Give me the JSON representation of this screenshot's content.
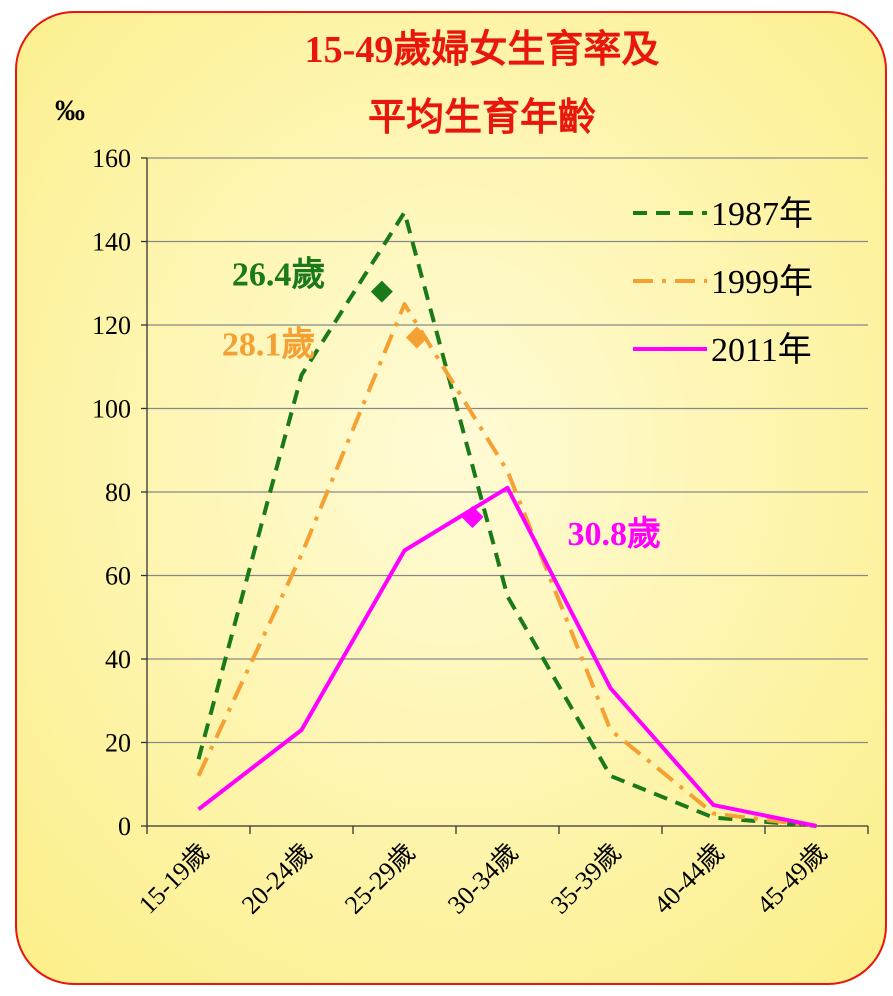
{
  "chart_data": {
    "type": "line",
    "title_line1": "15-49歲婦女生育率及",
    "title_line2": "平均生育年齡",
    "unit_label": "‰",
    "categories": [
      "15-19歲",
      "20-24歲",
      "25-29歲",
      "30-34歲",
      "35-39歲",
      "40-44歲",
      "45-49歲"
    ],
    "ylim": [
      0,
      160
    ],
    "yticks": [
      "0",
      "20",
      "40",
      "60",
      "80",
      "100",
      "120",
      "140",
      "160"
    ],
    "grid": true,
    "legend_position": "top-right",
    "series": [
      {
        "name": "1987年",
        "values": [
          16,
          108,
          147,
          55,
          12,
          2,
          0
        ],
        "color": "#1a7a1a",
        "style": "dash"
      },
      {
        "name": "1999年",
        "values": [
          12,
          65,
          125,
          85,
          23,
          3,
          0
        ],
        "color": "#f5a033",
        "style": "dashdot"
      },
      {
        "name": "2011年",
        "values": [
          4,
          23,
          66,
          81,
          33,
          5,
          0
        ],
        "color": "#ff00ff",
        "style": "solid"
      }
    ],
    "annotations": [
      {
        "label": "26.4歲",
        "age": 26.4,
        "value": 128,
        "color": "#1a7a1a"
      },
      {
        "label": "28.1歲",
        "age": 28.1,
        "value": 117,
        "color": "#f5a033"
      },
      {
        "label": "30.8歲",
        "age": 30.8,
        "value": 74,
        "color": "#ff00ff"
      }
    ]
  },
  "colors": {
    "title": "#e8160c",
    "frame_border": "#e8160c",
    "frame_fill_inner": "#fffbd6",
    "frame_fill_outer": "#fcef8c",
    "grid": "#888888",
    "axis": "#333333"
  }
}
